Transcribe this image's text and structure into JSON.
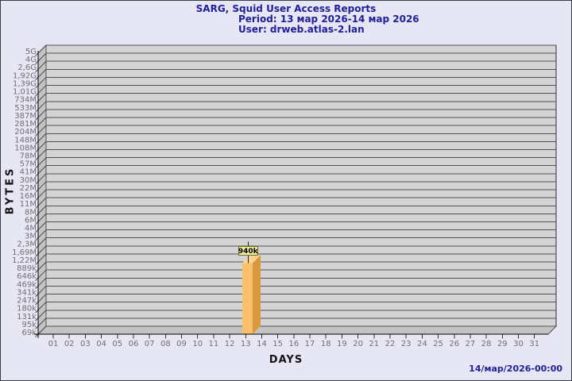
{
  "header": {
    "title": "SARG, Squid User Access Reports",
    "period": "Period: 13 мар 2026-14 мар 2026",
    "user": "User: drweb.atlas-2.lan"
  },
  "footer": {
    "generated": "14/мар/2026-00:00"
  },
  "chart_data": {
    "type": "bar",
    "title": "SARG, Squid User Access Reports",
    "subtitle": [
      "Period: 13 мар 2026-14 мар 2026",
      "User: drweb.atlas-2.lan"
    ],
    "xlabel": "DAYS",
    "ylabel": "BYTES",
    "y_scale": "logarithmic",
    "grid": "horizontal",
    "x_tick_labels": [
      "01",
      "02",
      "03",
      "04",
      "05",
      "06",
      "07",
      "08",
      "09",
      "10",
      "11",
      "12",
      "13",
      "14",
      "15",
      "16",
      "17",
      "18",
      "19",
      "20",
      "21",
      "22",
      "23",
      "24",
      "25",
      "26",
      "27",
      "28",
      "29",
      "30",
      "31"
    ],
    "y_tick_labels": [
      "5G",
      "4G",
      "2,6G",
      "1,92G",
      "1,39G",
      "1,01G",
      "734M",
      "533M",
      "387M",
      "281M",
      "204M",
      "148M",
      "108M",
      "78M",
      "57M",
      "41M",
      "30M",
      "22M",
      "16M",
      "11M",
      "8M",
      "6M",
      "4M",
      "3M",
      "2,3M",
      "1,69M",
      "1,22M",
      "889k",
      "646k",
      "469k",
      "341k",
      "247k",
      "180k",
      "131k",
      "95k",
      "69k"
    ],
    "bars": [
      {
        "day": "13",
        "value_label": "940k",
        "value_bytes": 940000
      }
    ],
    "colors": {
      "background": "#E6E6F5",
      "plot_face": "#D4D4D4",
      "plot_side": "#C3C3C3",
      "grid_line": "#50505A",
      "axis_line": "#000000",
      "tick_label": "#707070",
      "title_text": "#20209A",
      "bar_front": "#FAC069",
      "bar_side": "#D9993F",
      "bar_top": "#FCD392",
      "value_box_fill": "#F1EEA3",
      "value_box_border": "#6B6B1A",
      "value_text": "#000000"
    }
  }
}
